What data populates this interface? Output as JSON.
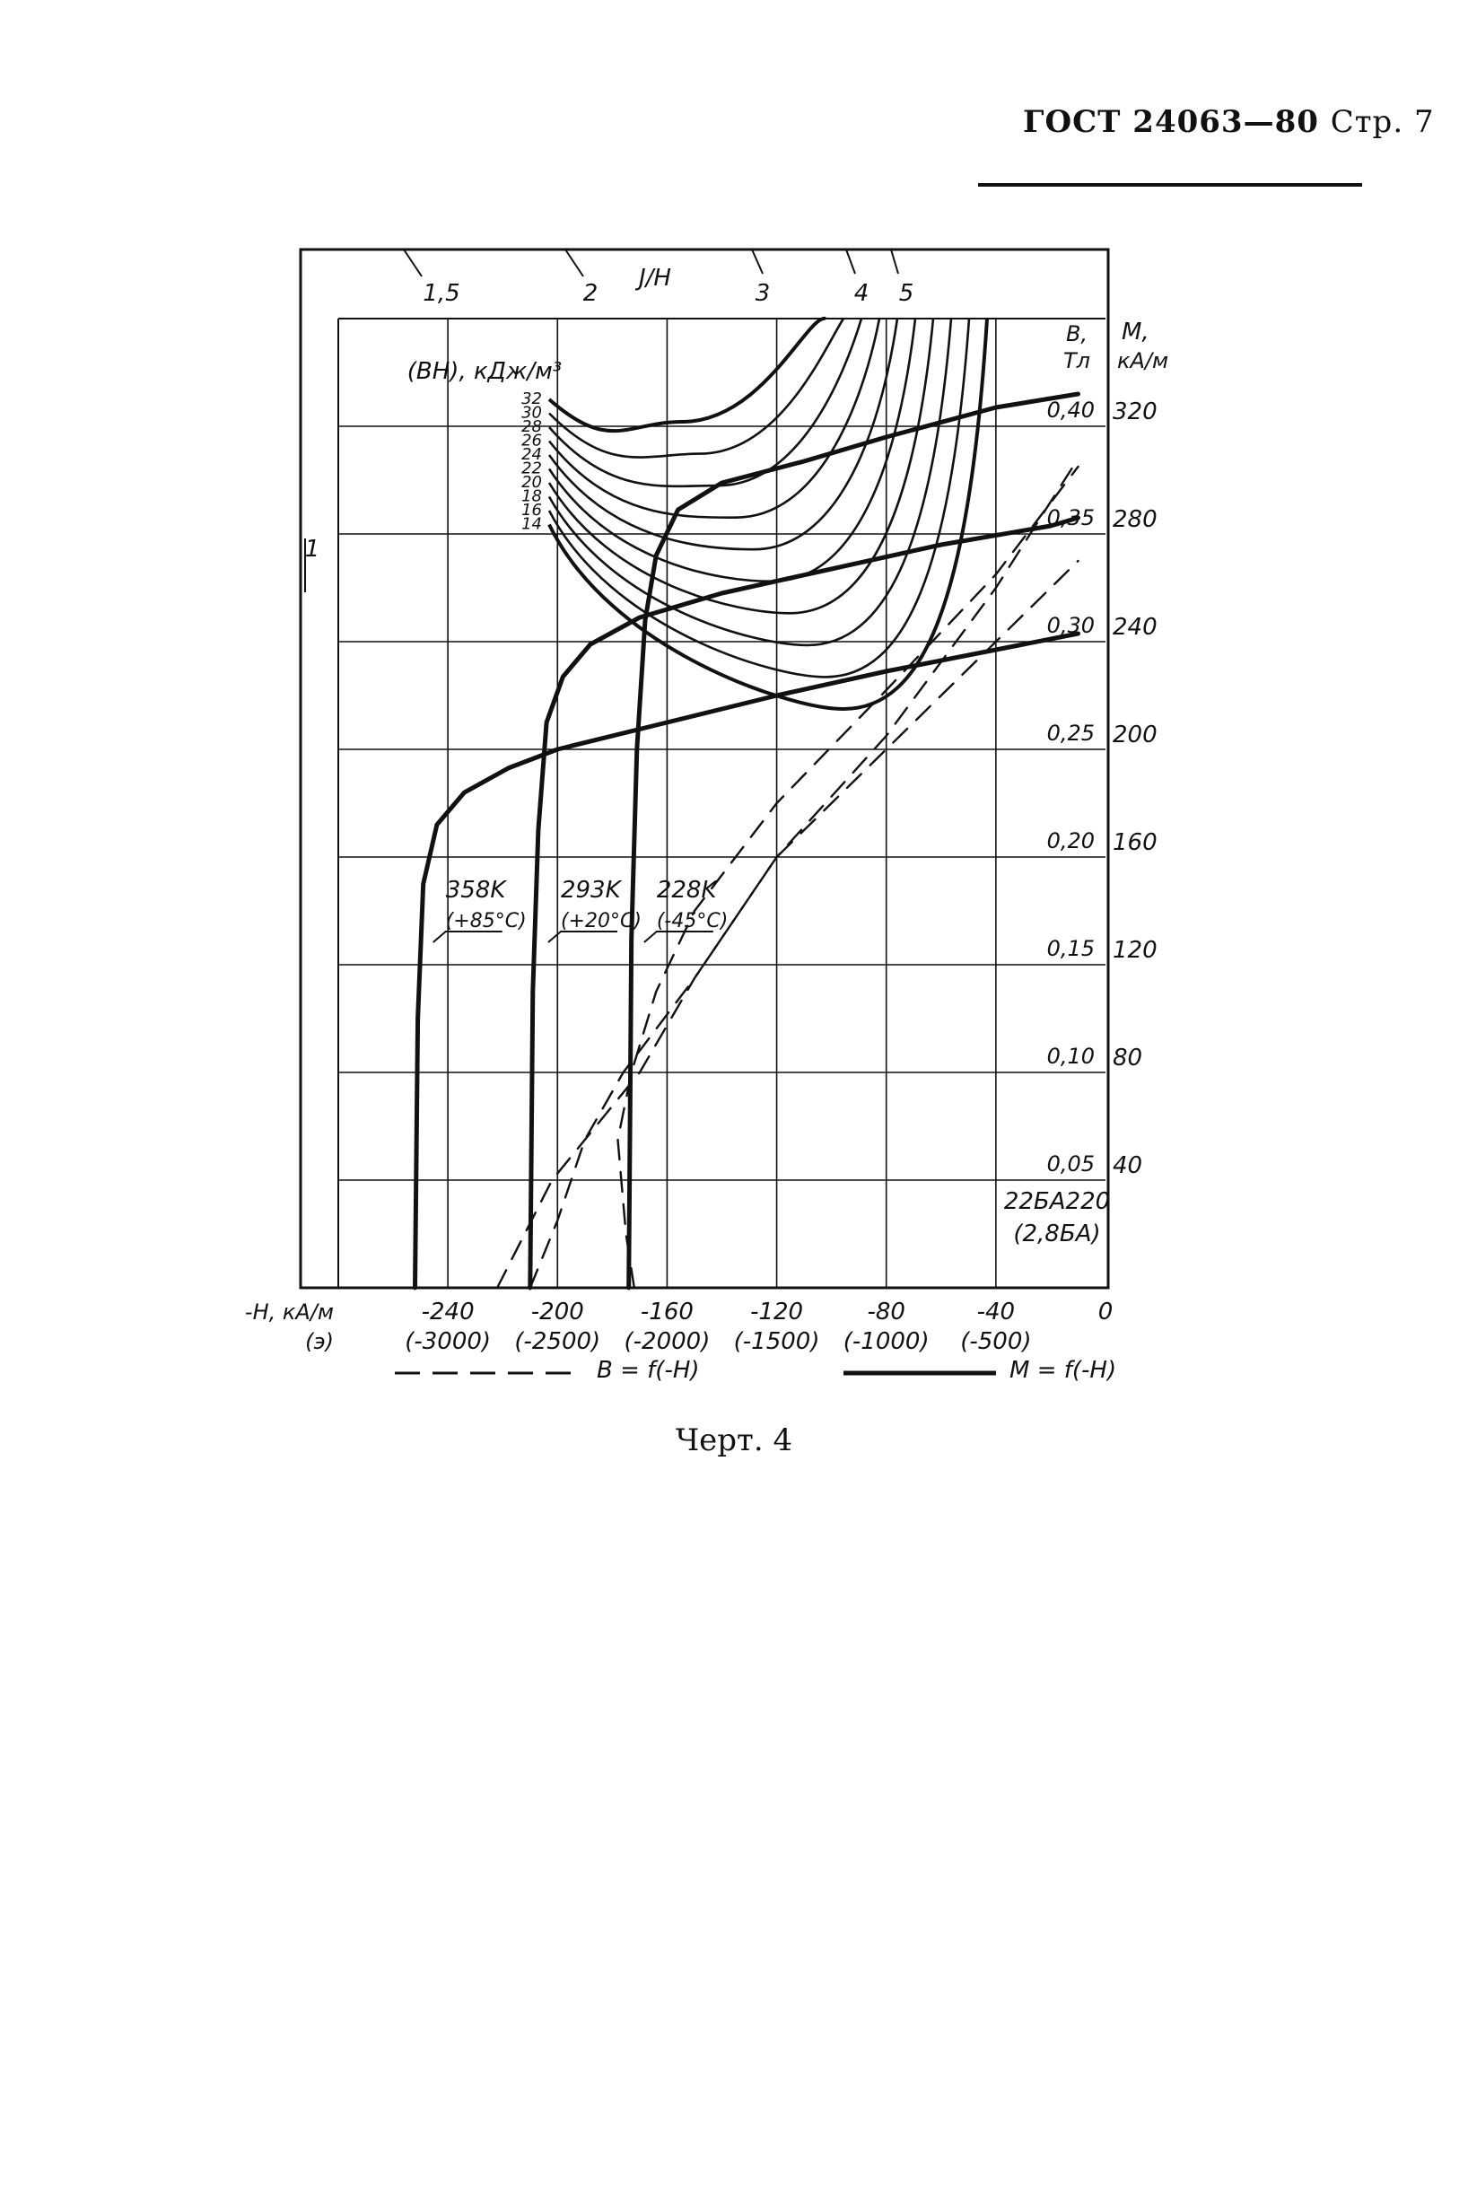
{
  "header": {
    "standard": "ГОСТ 24063—80",
    "page": "Стр. 7"
  },
  "caption": "Черт. 4",
  "chart_data": {
    "type": "line",
    "title": "",
    "xlabel": "-H, кА/м",
    "xlabel_note": "(э)",
    "x_ticks": [
      {
        "value": -240,
        "label": "-240",
        "sub": "(-3000)"
      },
      {
        "value": -200,
        "label": "-200",
        "sub": "(-2500)"
      },
      {
        "value": -160,
        "label": "-160",
        "sub": "(-2000)"
      },
      {
        "value": -120,
        "label": "-120",
        "sub": "(-1500)"
      },
      {
        "value": -80,
        "label": "-80",
        "sub": "(-1000)"
      },
      {
        "value": -40,
        "label": "-40",
        "sub": "(-500)"
      },
      {
        "value": 0,
        "label": "0",
        "sub": ""
      }
    ],
    "xlim": [
      -280,
      0
    ],
    "ylabel_B": "B, Тл",
    "ylabel_M": "M, кА/м",
    "y_ticks": [
      {
        "M": 40,
        "M_label": "40",
        "B_label": "0,05"
      },
      {
        "M": 80,
        "M_label": "80",
        "B_label": "0,10"
      },
      {
        "M": 120,
        "M_label": "120",
        "B_label": "0,15"
      },
      {
        "M": 160,
        "M_label": "160",
        "B_label": "0,20"
      },
      {
        "M": 200,
        "M_label": "200",
        "B_label": "0,25"
      },
      {
        "M": 240,
        "M_label": "240",
        "B_label": "0,30"
      },
      {
        "M": 280,
        "M_label": "280",
        "B_label": "0,35"
      },
      {
        "M": 320,
        "M_label": "320",
        "B_label": "0,40"
      }
    ],
    "ylim": [
      0,
      360
    ],
    "material": "22БА220",
    "material_note": "(2,8БА)",
    "energy_label": "(BH), кДж/м³",
    "energy_levels": [
      32,
      30,
      28,
      26,
      24,
      22,
      20,
      18,
      16,
      14
    ],
    "jh_label": "J/H",
    "jh_ratios": [
      "1",
      "1,5",
      "2",
      "3",
      "4",
      "5"
    ],
    "legend": {
      "dashed": "B = f(-H)",
      "solid": "M = f(-H)"
    },
    "series": [
      {
        "name": "M 358K",
        "style": "solid",
        "temperature_K": "358K",
        "temperature_C": "(+85°C)",
        "points": [
          [
            -252,
            0
          ],
          [
            -251,
            100
          ],
          [
            -249,
            150
          ],
          [
            -244,
            172
          ],
          [
            -234,
            184
          ],
          [
            -218,
            193
          ],
          [
            -200,
            200
          ],
          [
            -160,
            210
          ],
          [
            -120,
            220
          ],
          [
            -80,
            229
          ],
          [
            -40,
            237
          ],
          [
            -10,
            243
          ]
        ]
      },
      {
        "name": "M 293K",
        "style": "solid",
        "temperature_K": "293K",
        "temperature_C": "(+20°C)",
        "points": [
          [
            -210,
            0
          ],
          [
            -209,
            110
          ],
          [
            -207,
            170
          ],
          [
            -204,
            210
          ],
          [
            -198,
            227
          ],
          [
            -188,
            239
          ],
          [
            -170,
            249
          ],
          [
            -140,
            258
          ],
          [
            -100,
            267
          ],
          [
            -60,
            276
          ],
          [
            -20,
            283
          ],
          [
            -10,
            286
          ]
        ]
      },
      {
        "name": "M 228K",
        "style": "solid",
        "temperature_K": "228K",
        "temperature_C": "(-45°C)",
        "points": [
          [
            -174,
            0
          ],
          [
            -173,
            130
          ],
          [
            -171,
            200
          ],
          [
            -168,
            248
          ],
          [
            -164,
            272
          ],
          [
            -156,
            289
          ],
          [
            -140,
            299
          ],
          [
            -110,
            307
          ],
          [
            -80,
            316
          ],
          [
            -40,
            327
          ],
          [
            -10,
            332
          ]
        ]
      },
      {
        "name": "B 358K",
        "style": "dashed",
        "points": [
          [
            -222,
            0
          ],
          [
            -202,
            40
          ],
          [
            -170,
            80
          ],
          [
            -150,
            115
          ],
          [
            -120,
            160
          ],
          [
            -80,
            200
          ],
          [
            -40,
            240
          ],
          [
            -10,
            270
          ]
        ]
      },
      {
        "name": "B 293K",
        "style": "dashed",
        "points": [
          [
            -210,
            0
          ],
          [
            -200,
            25
          ],
          [
            -190,
            55
          ],
          [
            -176,
            80
          ],
          [
            -150,
            115
          ],
          [
            -120,
            160
          ],
          [
            -80,
            205
          ],
          [
            -40,
            260
          ],
          [
            -10,
            308
          ]
        ]
      },
      {
        "name": "B 228K",
        "style": "dashed",
        "points": [
          [
            -172,
            0
          ],
          [
            -175,
            20
          ],
          [
            -178,
            55
          ],
          [
            -173,
            80
          ],
          [
            -164,
            110
          ],
          [
            -150,
            140
          ],
          [
            -120,
            180
          ],
          [
            -80,
            222
          ],
          [
            -40,
            265
          ],
          [
            -10,
            305
          ]
        ]
      }
    ]
  }
}
